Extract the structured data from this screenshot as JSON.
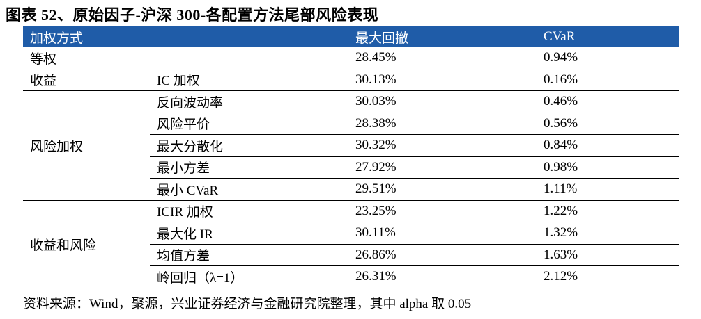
{
  "title": "图表 52、原始因子-沪深 300-各配置方法尾部风险表现",
  "table": {
    "header": [
      "加权方式",
      "最大回撤",
      "CVaR"
    ],
    "groups": [
      {
        "label": "等权",
        "rows": [
          {
            "drawdown": "28.45%",
            "cvar": "0.94%"
          }
        ]
      },
      {
        "label": "收益",
        "rows": [
          {
            "method": "IC 加权",
            "drawdown": "30.13%",
            "cvar": "0.16%"
          }
        ]
      },
      {
        "label": "风险加权",
        "rows": [
          {
            "method": "反向波动率",
            "drawdown": "30.03%",
            "cvar": "0.46%"
          },
          {
            "method": "风险平价",
            "drawdown": "28.38%",
            "cvar": "0.56%"
          },
          {
            "method": "最大分散化",
            "drawdown": "30.32%",
            "cvar": "0.84%"
          },
          {
            "method": "最小方差",
            "drawdown": "27.92%",
            "cvar": "0.98%"
          },
          {
            "method": "最小 CVaR",
            "drawdown": "29.51%",
            "cvar": "1.11%"
          }
        ]
      },
      {
        "label": "收益和风险",
        "rows": [
          {
            "method": "ICIR 加权",
            "drawdown": "23.25%",
            "cvar": "1.22%"
          },
          {
            "method": "最大化 IR",
            "drawdown": "30.11%",
            "cvar": "1.32%"
          },
          {
            "method": "均值方差",
            "drawdown": "26.86%",
            "cvar": "1.63%"
          },
          {
            "method": "岭回归（λ=1）",
            "drawdown": "26.31%",
            "cvar": "2.12%"
          }
        ]
      }
    ]
  },
  "note": "资料来源：Wind，聚源，兴业证券经济与金融研究院整理，其中 alpha 取 0.05"
}
